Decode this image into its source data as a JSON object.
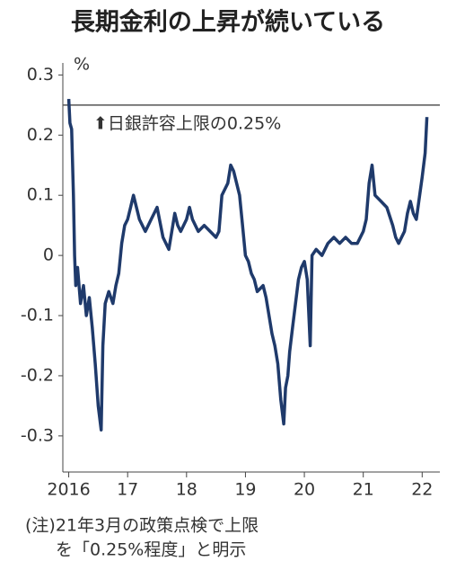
{
  "chart_data": {
    "type": "line",
    "title": "長期金利の上昇が続いている",
    "y_unit": "%",
    "annotation": "⬆日銀許容上限の0.25%",
    "reference_line": 0.25,
    "notes": [
      "(注)21年3月の政策点検で上限",
      "を「0.25%程度」と明示"
    ],
    "xlim": [
      2015.9,
      2022.3
    ],
    "xticks": [
      2016,
      {
        "value": 2017,
        "label": "17"
      },
      {
        "value": 2018,
        "label": "18"
      },
      {
        "value": 2019,
        "label": "19"
      },
      {
        "value": 2020,
        "label": "20"
      },
      {
        "value": 2021,
        "label": "21"
      },
      {
        "value": 2022,
        "label": "22"
      }
    ],
    "ylim": [
      -0.36,
      0.32
    ],
    "yticks": [
      0.3,
      0.2,
      0.1,
      0,
      -0.1,
      -0.2,
      -0.3
    ],
    "color": "#1f3a6b",
    "x": [
      2016.0,
      2016.02,
      2016.05,
      2016.08,
      2016.1,
      2016.12,
      2016.15,
      2016.2,
      2016.25,
      2016.3,
      2016.35,
      2016.4,
      2016.45,
      2016.5,
      2016.55,
      2016.58,
      2016.62,
      2016.68,
      2016.75,
      2016.8,
      2016.85,
      2016.9,
      2016.95,
      2017.0,
      2017.05,
      2017.1,
      2017.15,
      2017.2,
      2017.3,
      2017.4,
      2017.5,
      2017.6,
      2017.7,
      2017.75,
      2017.8,
      2017.85,
      2017.9,
      2018.0,
      2018.05,
      2018.1,
      2018.2,
      2018.3,
      2018.4,
      2018.5,
      2018.55,
      2018.6,
      2018.65,
      2018.7,
      2018.75,
      2018.8,
      2018.85,
      2018.9,
      2018.95,
      2019.0,
      2019.05,
      2019.1,
      2019.15,
      2019.2,
      2019.3,
      2019.35,
      2019.4,
      2019.45,
      2019.5,
      2019.55,
      2019.6,
      2019.65,
      2019.68,
      2019.72,
      2019.75,
      2019.8,
      2019.85,
      2019.9,
      2019.95,
      2020.0,
      2020.05,
      2020.1,
      2020.13,
      2020.2,
      2020.3,
      2020.4,
      2020.5,
      2020.6,
      2020.7,
      2020.8,
      2020.9,
      2021.0,
      2021.05,
      2021.1,
      2021.15,
      2021.2,
      2021.3,
      2021.4,
      2021.5,
      2021.55,
      2021.6,
      2021.7,
      2021.75,
      2021.8,
      2021.85,
      2021.9,
      2022.0,
      2022.05,
      2022.08
    ],
    "values": [
      0.26,
      0.22,
      0.21,
      0.1,
      0.0,
      -0.05,
      -0.02,
      -0.08,
      -0.05,
      -0.1,
      -0.07,
      -0.12,
      -0.18,
      -0.25,
      -0.29,
      -0.15,
      -0.08,
      -0.06,
      -0.08,
      -0.05,
      -0.03,
      0.02,
      0.05,
      0.06,
      0.08,
      0.1,
      0.08,
      0.06,
      0.04,
      0.06,
      0.08,
      0.03,
      0.01,
      0.04,
      0.07,
      0.05,
      0.04,
      0.06,
      0.08,
      0.06,
      0.04,
      0.05,
      0.04,
      0.03,
      0.04,
      0.1,
      0.11,
      0.12,
      0.15,
      0.14,
      0.12,
      0.1,
      0.05,
      0.0,
      -0.01,
      -0.03,
      -0.04,
      -0.06,
      -0.05,
      -0.07,
      -0.1,
      -0.13,
      -0.15,
      -0.18,
      -0.24,
      -0.28,
      -0.22,
      -0.2,
      -0.16,
      -0.12,
      -0.08,
      -0.04,
      -0.02,
      -0.01,
      -0.04,
      -0.15,
      0.0,
      0.01,
      0.0,
      0.02,
      0.03,
      0.02,
      0.03,
      0.02,
      0.02,
      0.04,
      0.06,
      0.12,
      0.15,
      0.1,
      0.09,
      0.08,
      0.05,
      0.03,
      0.02,
      0.04,
      0.07,
      0.09,
      0.07,
      0.06,
      0.13,
      0.17,
      0.23
    ]
  }
}
